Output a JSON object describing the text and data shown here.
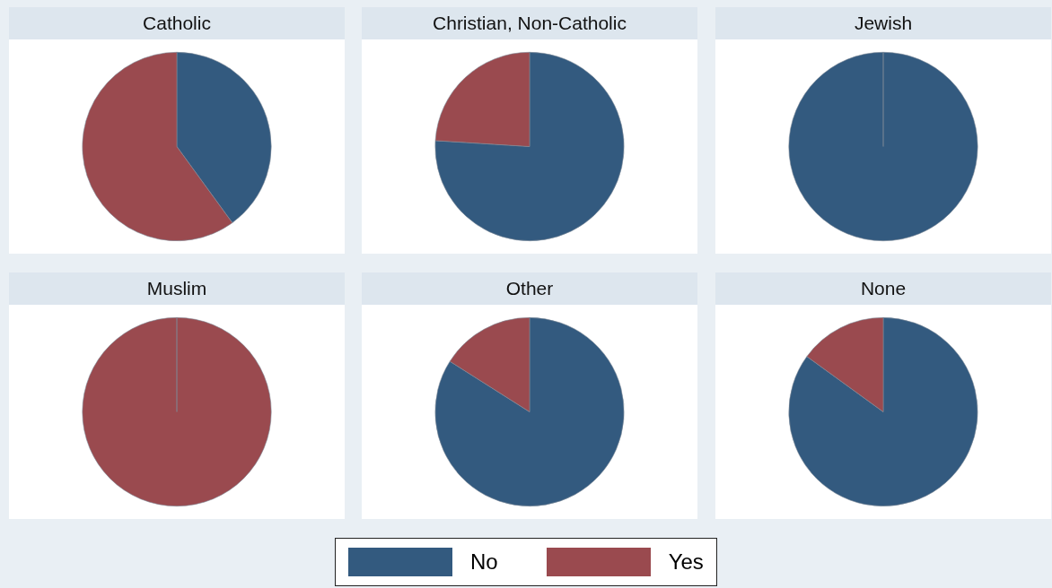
{
  "chart_data": [
    {
      "type": "pie",
      "title": "Catholic",
      "categories": [
        "No",
        "Yes"
      ],
      "values": [
        40,
        60
      ],
      "colors": [
        "#335a7f",
        "#9a4a4f"
      ],
      "legend": "bottom"
    },
    {
      "type": "pie",
      "title": "Christian, Non-Catholic",
      "values": [
        76,
        24
      ],
      "colors": [
        "#335a7f",
        "#9a4a4f"
      ]
    },
    {
      "type": "pie",
      "title": "Jewish",
      "values": [
        100,
        0
      ],
      "colors": [
        "#335a7f",
        "#9a4a4f"
      ]
    },
    {
      "type": "pie",
      "title": "Muslim",
      "values": [
        0,
        100
      ],
      "colors": [
        "#335a7f",
        "#9a4a4f"
      ]
    },
    {
      "type": "pie",
      "title": "Other",
      "values": [
        84,
        16
      ],
      "colors": [
        "#335a7f",
        "#9a4a4f"
      ]
    },
    {
      "type": "pie",
      "title": "None",
      "values": [
        85,
        15
      ],
      "colors": [
        "#335a7f",
        "#9a4a4f"
      ]
    }
  ]
}
